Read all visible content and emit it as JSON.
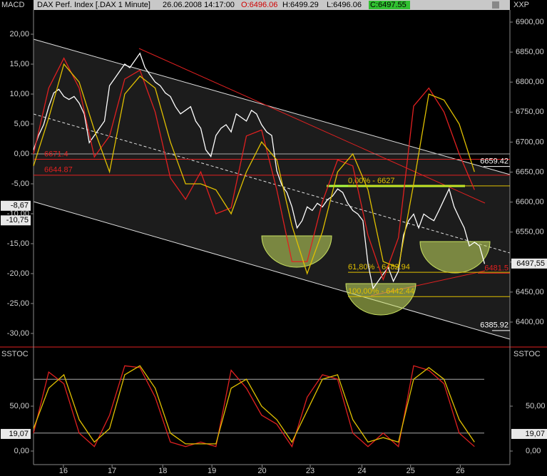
{
  "header": {
    "title": "DAX Perf. Index [.DAX  1 Minute]",
    "datetime": "26.06.2008 14:17:00",
    "open": "O:6496.06",
    "high": "H:6499.29",
    "low": "L:6496.06",
    "close": "C:6497.55"
  },
  "chart_data": [
    {
      "type": "line",
      "label_left": "MACD",
      "label_right": "XXP",
      "xlim": [
        0,
        94
      ],
      "xticks": [
        {
          "value": 5.9,
          "label": "16"
        },
        {
          "value": 15.5,
          "label": "17"
        },
        {
          "value": 25.5,
          "label": "18"
        },
        {
          "value": 35.2,
          "label": "19"
        },
        {
          "value": 45.1,
          "label": "20"
        },
        {
          "value": 54.6,
          "label": "23"
        },
        {
          "value": 64.8,
          "label": "24"
        },
        {
          "value": 74.4,
          "label": "25"
        },
        {
          "value": 84.2,
          "label": "26"
        }
      ],
      "ylim": [
        -31.2,
        24.05
      ],
      "yticks": [
        {
          "value": 20,
          "label": "20,00"
        },
        {
          "value": 15,
          "label": "15,00"
        },
        {
          "value": 10,
          "label": "10,00"
        },
        {
          "value": 5,
          "label": "5,00"
        },
        {
          "value": 0,
          "label": "0,00"
        },
        {
          "value": -5,
          "label": "-5,00"
        },
        {
          "value": -10,
          "label": "-10,00"
        },
        {
          "value": -15,
          "label": "-15,00"
        },
        {
          "value": -20,
          "label": "-20,00"
        },
        {
          "value": -25,
          "label": "-25,00"
        },
        {
          "value": -30,
          "label": "-30,00"
        }
      ],
      "y2lim": [
        6369.1,
        6920.2
      ],
      "y2ticks": [
        {
          "value": 6900,
          "label": "6900,00"
        },
        {
          "value": 6850,
          "label": "6850,00"
        },
        {
          "value": 6800,
          "label": "6800,00"
        },
        {
          "value": 6750,
          "label": "6750,00"
        },
        {
          "value": 6700,
          "label": "6700,00"
        },
        {
          "value": 6650,
          "label": "6650,00"
        },
        {
          "value": 6600,
          "label": "6600,00"
        },
        {
          "value": 6550,
          "label": "6550,00"
        },
        {
          "value": 6500,
          "label": "6500,00"
        },
        {
          "value": 6450,
          "label": "6450,00"
        },
        {
          "value": 6400,
          "label": "6400,00"
        }
      ],
      "zero_line": true,
      "series": [
        {
          "color": "#ffffff",
          "axis": "y2",
          "x": [
            0,
            1,
            2,
            3,
            4,
            5,
            6,
            7,
            8,
            9,
            10,
            11,
            12,
            13,
            14,
            15,
            16,
            17,
            18,
            19,
            20,
            21,
            22,
            23,
            24,
            25,
            26,
            27,
            28,
            29,
            30,
            31,
            32,
            33,
            34,
            35,
            36,
            37,
            38,
            39,
            40,
            41,
            42,
            43,
            44,
            45,
            46,
            47,
            48,
            49,
            50,
            51,
            52,
            53,
            54,
            55,
            56,
            57,
            58,
            59,
            60,
            61,
            62,
            63,
            64,
            65,
            66,
            67,
            68,
            69,
            70,
            71,
            72,
            73,
            74,
            75,
            76,
            77,
            78,
            79,
            80,
            81,
            82,
            83,
            84,
            85,
            86,
            87,
            88,
            89
          ],
          "values": [
            6687,
            6711,
            6729,
            6759,
            6782,
            6788,
            6776,
            6771,
            6776,
            6765,
            6747,
            6699,
            6711,
            6723,
            6735,
            6794,
            6806,
            6818,
            6830,
            6824,
            6836,
            6848,
            6824,
            6812,
            6800,
            6794,
            6782,
            6776,
            6759,
            6747,
            6753,
            6759,
            6735,
            6723,
            6687,
            6676,
            6711,
            6723,
            6729,
            6717,
            6747,
            6741,
            6735,
            6753,
            6747,
            6729,
            6717,
            6711,
            6652,
            6628,
            6616,
            6592,
            6557,
            6569,
            6592,
            6586,
            6598,
            6592,
            6604,
            6610,
            6622,
            6616,
            6598,
            6586,
            6580,
            6569,
            6497,
            6456,
            6468,
            6480,
            6491,
            6468,
            6485,
            6545,
            6569,
            6580,
            6557,
            6580,
            6574,
            6569,
            6586,
            6604,
            6622,
            6592,
            6574,
            6557,
            6527,
            6533,
            6527,
            6497
          ]
        },
        {
          "color": "#e02020",
          "axis": "y",
          "x": [
            0,
            3,
            6,
            9,
            12,
            15,
            18,
            21,
            24,
            27,
            30,
            33,
            36,
            39,
            42,
            45,
            48,
            51,
            54,
            57,
            60,
            63,
            66,
            69,
            72,
            75,
            78,
            81,
            84,
            87
          ],
          "values": [
            0,
            11,
            16,
            11,
            -0.5,
            3,
            12.5,
            14,
            7,
            -4,
            -7.6,
            -3,
            -10,
            -9,
            3,
            4,
            -6,
            -18,
            -18,
            -8,
            -1,
            -2,
            -13.6,
            -21,
            -14,
            8,
            11,
            7,
            0,
            -6
          ]
        },
        {
          "color": "#e0c000",
          "axis": "y",
          "x": [
            0,
            3,
            6,
            9,
            12,
            15,
            18,
            21,
            24,
            27,
            30,
            33,
            36,
            39,
            42,
            45,
            48,
            51,
            54,
            57,
            60,
            63,
            66,
            69,
            72,
            75,
            78,
            81,
            84,
            87
          ],
          "values": [
            -2,
            6,
            15,
            12,
            4,
            -3,
            10,
            13,
            11,
            2,
            -5,
            -5,
            -6,
            -10,
            -3,
            2,
            -1,
            -12,
            -20,
            -13,
            -3,
            0,
            -6,
            -18,
            -19,
            -5,
            10,
            9,
            5,
            -3
          ]
        }
      ],
      "last_values": [
        {
          "value": -8.67,
          "label": "-8,67"
        },
        {
          "value": -10.75,
          "label": "-10,75"
        }
      ],
      "y2_last_value": {
        "value": 6497.55,
        "label": "6497,55"
      },
      "levels": [
        {
          "value": 6671.4,
          "label": "6671.4",
          "color": "#e02020"
        },
        {
          "value": 6644.87,
          "label": "6644.87",
          "color": "#e02020"
        },
        {
          "value": 6627,
          "label": "0,00% - 6627",
          "color": "#e0c000"
        },
        {
          "value": 6482.94,
          "label": "61,80% - 6482.94",
          "color": "#e0c000"
        },
        {
          "value": 6442.44,
          "label": "100,00% - 6442.44",
          "color": "#e0c000"
        },
        {
          "value": 6659.42,
          "label": "6659.42",
          "color": "#ffffff"
        },
        {
          "value": 6481.5,
          "label": "6481.5",
          "color": "#e02020"
        },
        {
          "value": 6385.92,
          "label": "6385.92",
          "color": "#ffffff"
        }
      ]
    },
    {
      "type": "line",
      "label_left": "SSTOC",
      "label_right": "SSTOC",
      "xlim": [
        0,
        94
      ],
      "ylim": [
        -13.5,
        113.5
      ],
      "yticks": [
        {
          "value": 50,
          "label": "50,00"
        },
        {
          "value": 0,
          "label": "0,00"
        }
      ],
      "hlines": [
        80,
        20
      ],
      "series": [
        {
          "color": "#e02020",
          "axis": "y",
          "x": [
            0,
            3,
            6,
            9,
            12,
            15,
            18,
            21,
            24,
            27,
            30,
            33,
            36,
            39,
            42,
            45,
            48,
            51,
            54,
            57,
            60,
            63,
            66,
            69,
            72,
            75,
            78,
            81,
            84,
            87
          ],
          "values": [
            20,
            88,
            75,
            20,
            5,
            40,
            95,
            93,
            60,
            10,
            5,
            10,
            5,
            90,
            70,
            40,
            30,
            5,
            60,
            85,
            80,
            20,
            5,
            20,
            5,
            95,
            90,
            75,
            20,
            5
          ]
        },
        {
          "color": "#e0c000",
          "axis": "y",
          "x": [
            0,
            3,
            6,
            9,
            12,
            15,
            18,
            21,
            24,
            27,
            30,
            33,
            36,
            39,
            42,
            45,
            48,
            51,
            54,
            57,
            60,
            63,
            66,
            69,
            72,
            75,
            78,
            81,
            84,
            87
          ],
          "values": [
            25,
            70,
            85,
            35,
            10,
            25,
            85,
            95,
            70,
            20,
            8,
            8,
            8,
            70,
            80,
            50,
            35,
            10,
            45,
            80,
            85,
            35,
            10,
            15,
            10,
            80,
            93,
            80,
            35,
            10
          ]
        }
      ],
      "last_values": [
        {
          "value": 19.07,
          "label": "19,07"
        }
      ],
      "y2_last_value": {
        "value": 19.07,
        "label": "19,07"
      }
    }
  ]
}
